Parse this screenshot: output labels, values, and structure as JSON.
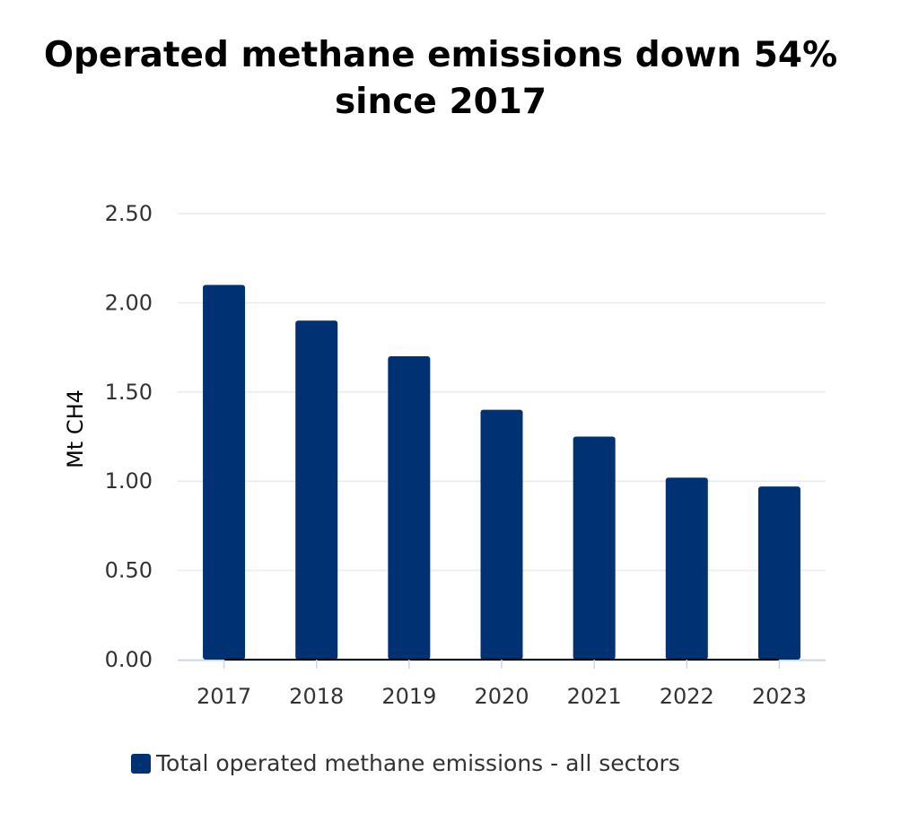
{
  "chart_data": {
    "type": "bar",
    "title_lines": [
      "Operated methane emissions down 54%",
      "since 2017"
    ],
    "ylabel": "Mt CH4",
    "xlabel": "",
    "categories": [
      "2017",
      "2018",
      "2019",
      "2020",
      "2021",
      "2022",
      "2023"
    ],
    "series": [
      {
        "name": "Total operated methane emissions - all sectors",
        "values": [
          2.1,
          1.9,
          1.7,
          1.4,
          1.25,
          1.02,
          0.97
        ],
        "color": "#003273"
      }
    ],
    "ylim": [
      0,
      2.5
    ],
    "yticks": [
      "0.00",
      "0.50",
      "1.00",
      "1.50",
      "2.00",
      "2.50"
    ],
    "grid": true,
    "legend_position": "bottom"
  }
}
